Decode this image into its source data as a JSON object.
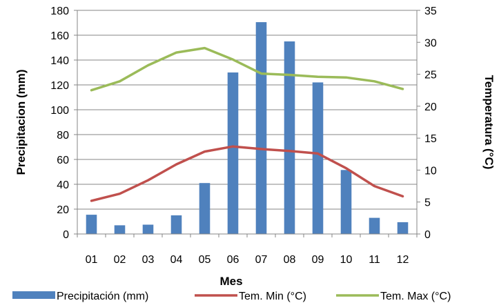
{
  "chart_data": {
    "type": "bar+line",
    "title": "",
    "xlabel": "Mes",
    "ylabel_left": "Precipitacion (mm)",
    "ylabel_right": "Temperatura (°C)",
    "categories": [
      "01",
      "02",
      "03",
      "04",
      "05",
      "06",
      "07",
      "08",
      "09",
      "10",
      "11",
      "12"
    ],
    "ylim_left": [
      0,
      180
    ],
    "yticks_left": [
      "0",
      "20",
      "40",
      "60",
      "80",
      "100",
      "120",
      "140",
      "160",
      "180"
    ],
    "ylim_right": [
      0,
      35
    ],
    "yticks_right": [
      "0",
      "5",
      "10",
      "15",
      "20",
      "25",
      "30",
      "35"
    ],
    "grid": true,
    "legend_position": "bottom",
    "series": [
      {
        "name": "Precipitación (mm)",
        "kind": "bar",
        "axis": "left",
        "color": "#4f81bd",
        "values": [
          15.5,
          7,
          7.5,
          15,
          41,
          130,
          170.5,
          155,
          122,
          51.5,
          13,
          9.5
        ]
      },
      {
        "name": "Tem. Min (°C)",
        "kind": "line",
        "axis": "right",
        "color": "#c0504d",
        "values": [
          5.2,
          6.3,
          8.4,
          10.9,
          12.9,
          13.7,
          13.3,
          13.0,
          12.6,
          10.3,
          7.5,
          5.9
        ]
      },
      {
        "name": "Tem. Max (°C)",
        "kind": "line",
        "axis": "right",
        "color": "#9bbb59",
        "values": [
          22.5,
          23.9,
          26.4,
          28.4,
          29.1,
          27.3,
          25.1,
          24.9,
          24.6,
          24.5,
          23.9,
          22.7
        ]
      }
    ]
  }
}
